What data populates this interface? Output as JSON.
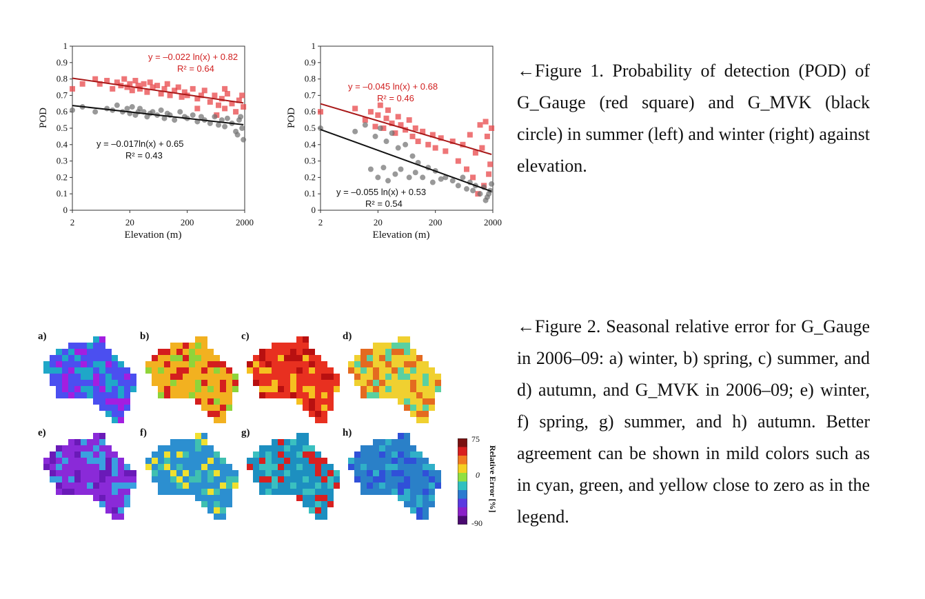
{
  "chart_data": [
    {
      "type": "scatter",
      "title": "",
      "xlabel": "Elevation (m)",
      "ylabel": "POD",
      "xscale": "log",
      "xlim": [
        2,
        2000
      ],
      "ylim": [
        0,
        1
      ],
      "xticks": [
        "2",
        "20",
        "200",
        "2000"
      ],
      "yticks": [
        "0",
        "0.1",
        "0.2",
        "0.3",
        "0.4",
        "0.5",
        "0.6",
        "0.7",
        "0.8",
        "0.9",
        "1"
      ],
      "series": [
        {
          "marker": "square",
          "color": "#e8474a",
          "x": [
            2,
            3,
            5,
            6,
            8,
            10,
            12,
            14,
            16,
            18,
            20,
            22,
            25,
            28,
            30,
            35,
            40,
            45,
            50,
            60,
            70,
            80,
            90,
            100,
            120,
            140,
            160,
            180,
            200,
            250,
            300,
            350,
            400,
            500,
            600,
            700,
            800,
            900,
            1000,
            1200,
            1400,
            1600,
            1800,
            1900,
            900,
            650,
            300
          ],
          "y": [
            0.74,
            0.77,
            0.8,
            0.77,
            0.79,
            0.74,
            0.78,
            0.76,
            0.8,
            0.75,
            0.77,
            0.73,
            0.79,
            0.76,
            0.74,
            0.77,
            0.72,
            0.78,
            0.75,
            0.76,
            0.71,
            0.74,
            0.77,
            0.7,
            0.73,
            0.75,
            0.69,
            0.72,
            0.7,
            0.74,
            0.68,
            0.7,
            0.73,
            0.66,
            0.7,
            0.64,
            0.68,
            0.62,
            0.71,
            0.65,
            0.6,
            0.67,
            0.7,
            0.63,
            0.74,
            0.58,
            0.62
          ],
          "fit": {
            "equation": "y = –0.022 ln(x) + 0.82",
            "r2": "R² = 0.64",
            "a": -0.022,
            "b": 0.82
          }
        },
        {
          "marker": "circle",
          "color": "#6e6e6e",
          "x": [
            2,
            3,
            5,
            8,
            10,
            12,
            15,
            18,
            20,
            22,
            25,
            28,
            30,
            35,
            40,
            45,
            50,
            60,
            70,
            80,
            90,
            100,
            120,
            150,
            180,
            200,
            250,
            300,
            350,
            400,
            500,
            600,
            700,
            800,
            900,
            1000,
            1200,
            1400,
            1600,
            1800,
            1900,
            1700,
            1500
          ],
          "y": [
            0.61,
            0.63,
            0.6,
            0.62,
            0.61,
            0.64,
            0.6,
            0.62,
            0.59,
            0.63,
            0.58,
            0.6,
            0.62,
            0.6,
            0.57,
            0.59,
            0.6,
            0.58,
            0.61,
            0.56,
            0.59,
            0.58,
            0.55,
            0.6,
            0.57,
            0.56,
            0.58,
            0.54,
            0.57,
            0.55,
            0.53,
            0.57,
            0.52,
            0.55,
            0.51,
            0.56,
            0.53,
            0.48,
            0.55,
            0.5,
            0.43,
            0.57,
            0.46
          ],
          "fit": {
            "equation": "y = –0.017ln(x) + 0.65",
            "r2": "R² = 0.43",
            "a": -0.017,
            "b": 0.65
          }
        }
      ]
    },
    {
      "type": "scatter",
      "title": "",
      "xlabel": "Elevation (m)",
      "ylabel": "POD",
      "xscale": "log",
      "xlim": [
        2,
        2000
      ],
      "ylim": [
        0,
        1
      ],
      "xticks": [
        "2",
        "20",
        "200",
        "2000"
      ],
      "yticks": [
        "0",
        "0.1",
        "0.2",
        "0.3",
        "0.4",
        "0.5",
        "0.6",
        "0.7",
        "0.8",
        "0.9",
        "1"
      ],
      "series": [
        {
          "marker": "square",
          "color": "#e8474a",
          "x": [
            2,
            8,
            12,
            15,
            18,
            20,
            22,
            25,
            28,
            30,
            35,
            40,
            45,
            50,
            60,
            70,
            80,
            90,
            100,
            120,
            150,
            180,
            200,
            250,
            300,
            400,
            500,
            600,
            700,
            800,
            900,
            1000,
            1200,
            1400,
            1600,
            1800,
            1900,
            1100,
            1300,
            1500,
            1700
          ],
          "y": [
            0.6,
            0.62,
            0.55,
            0.6,
            0.51,
            0.58,
            0.64,
            0.5,
            0.56,
            0.61,
            0.53,
            0.47,
            0.57,
            0.52,
            0.49,
            0.55,
            0.45,
            0.5,
            0.42,
            0.48,
            0.4,
            0.46,
            0.38,
            0.44,
            0.36,
            0.42,
            0.3,
            0.4,
            0.25,
            0.46,
            0.2,
            0.35,
            0.52,
            0.15,
            0.45,
            0.28,
            0.5,
            0.1,
            0.38,
            0.54,
            0.22
          ],
          "fit": {
            "equation": "y = –0.045 ln(x) + 0.68",
            "r2": "R² = 0.46",
            "a": -0.045,
            "b": 0.68
          }
        },
        {
          "marker": "circle",
          "color": "#6e6e6e",
          "x": [
            2,
            8,
            12,
            15,
            18,
            20,
            22,
            25,
            28,
            30,
            35,
            40,
            45,
            50,
            60,
            70,
            80,
            90,
            100,
            120,
            150,
            180,
            200,
            250,
            300,
            400,
            500,
            600,
            700,
            800,
            900,
            1000,
            1200,
            1400,
            1600,
            1800,
            1900,
            1500,
            1700
          ],
          "y": [
            0.5,
            0.48,
            0.52,
            0.25,
            0.45,
            0.2,
            0.5,
            0.26,
            0.42,
            0.18,
            0.47,
            0.22,
            0.38,
            0.25,
            0.4,
            0.2,
            0.33,
            0.23,
            0.29,
            0.2,
            0.26,
            0.17,
            0.24,
            0.19,
            0.2,
            0.18,
            0.15,
            0.2,
            0.13,
            0.17,
            0.12,
            0.15,
            0.1,
            0.14,
            0.08,
            0.12,
            0.16,
            0.06,
            0.1
          ],
          "fit": {
            "equation": "y = –0.055 ln(x) + 0.53",
            "r2": "R² = 0.54",
            "a": -0.055,
            "b": 0.53
          }
        }
      ]
    }
  ],
  "fig1_caption": "←Figure 1. Probability of detection (POD) of G_Gauge (red square) and G_MVK (black circle) in summer (left) and winter (right) against elevation.",
  "fig2_caption": "←Figure 2. Seasonal relative error for G_Gauge in 2006–09: a) winter, b) spring, c) summer, and d) autumn, and G_MVK in 2006–09; e) winter, f) spring, g) summer, and h) autumn. Better agreement can be shown in mild colors such as in cyan, green, and yellow close to zero as in the legend.",
  "fig2": {
    "panel_labels": [
      "a)",
      "b)",
      "c)",
      "d)",
      "e)",
      "f)",
      "g)",
      "h)"
    ],
    "panel_tones": [
      {
        "base": "#4b4ff0",
        "accent": "#a31ee0",
        "mix": "#1fa7c8"
      },
      {
        "base": "#f2b120",
        "accent": "#d41e1e",
        "mix": "#8fd43a"
      },
      {
        "base": "#e83020",
        "accent": "#b81010",
        "mix": "#f5c020"
      },
      {
        "base": "#f0d030",
        "accent": "#e46a20",
        "mix": "#5ad0a0"
      },
      {
        "base": "#8a2ad8",
        "accent": "#6a1ab8",
        "mix": "#3aa0e0"
      },
      {
        "base": "#2c8fd0",
        "accent": "#f0e030",
        "mix": "#40c0b0"
      },
      {
        "base": "#1d8fc0",
        "accent": "#d82020",
        "mix": "#3ac0c0"
      },
      {
        "base": "#2a80c8",
        "accent": "#3050d8",
        "mix": "#30b0c8"
      }
    ],
    "legend": {
      "title": "Relative Error [%]",
      "max": "75",
      "mid": "0",
      "min": "-90",
      "colors": [
        "#7a1010",
        "#d81e1e",
        "#f07a20",
        "#f5d020",
        "#90e040",
        "#30c0c0",
        "#2a7ad0",
        "#5a3ae0",
        "#8a20c8",
        "#4a0a70"
      ]
    }
  }
}
